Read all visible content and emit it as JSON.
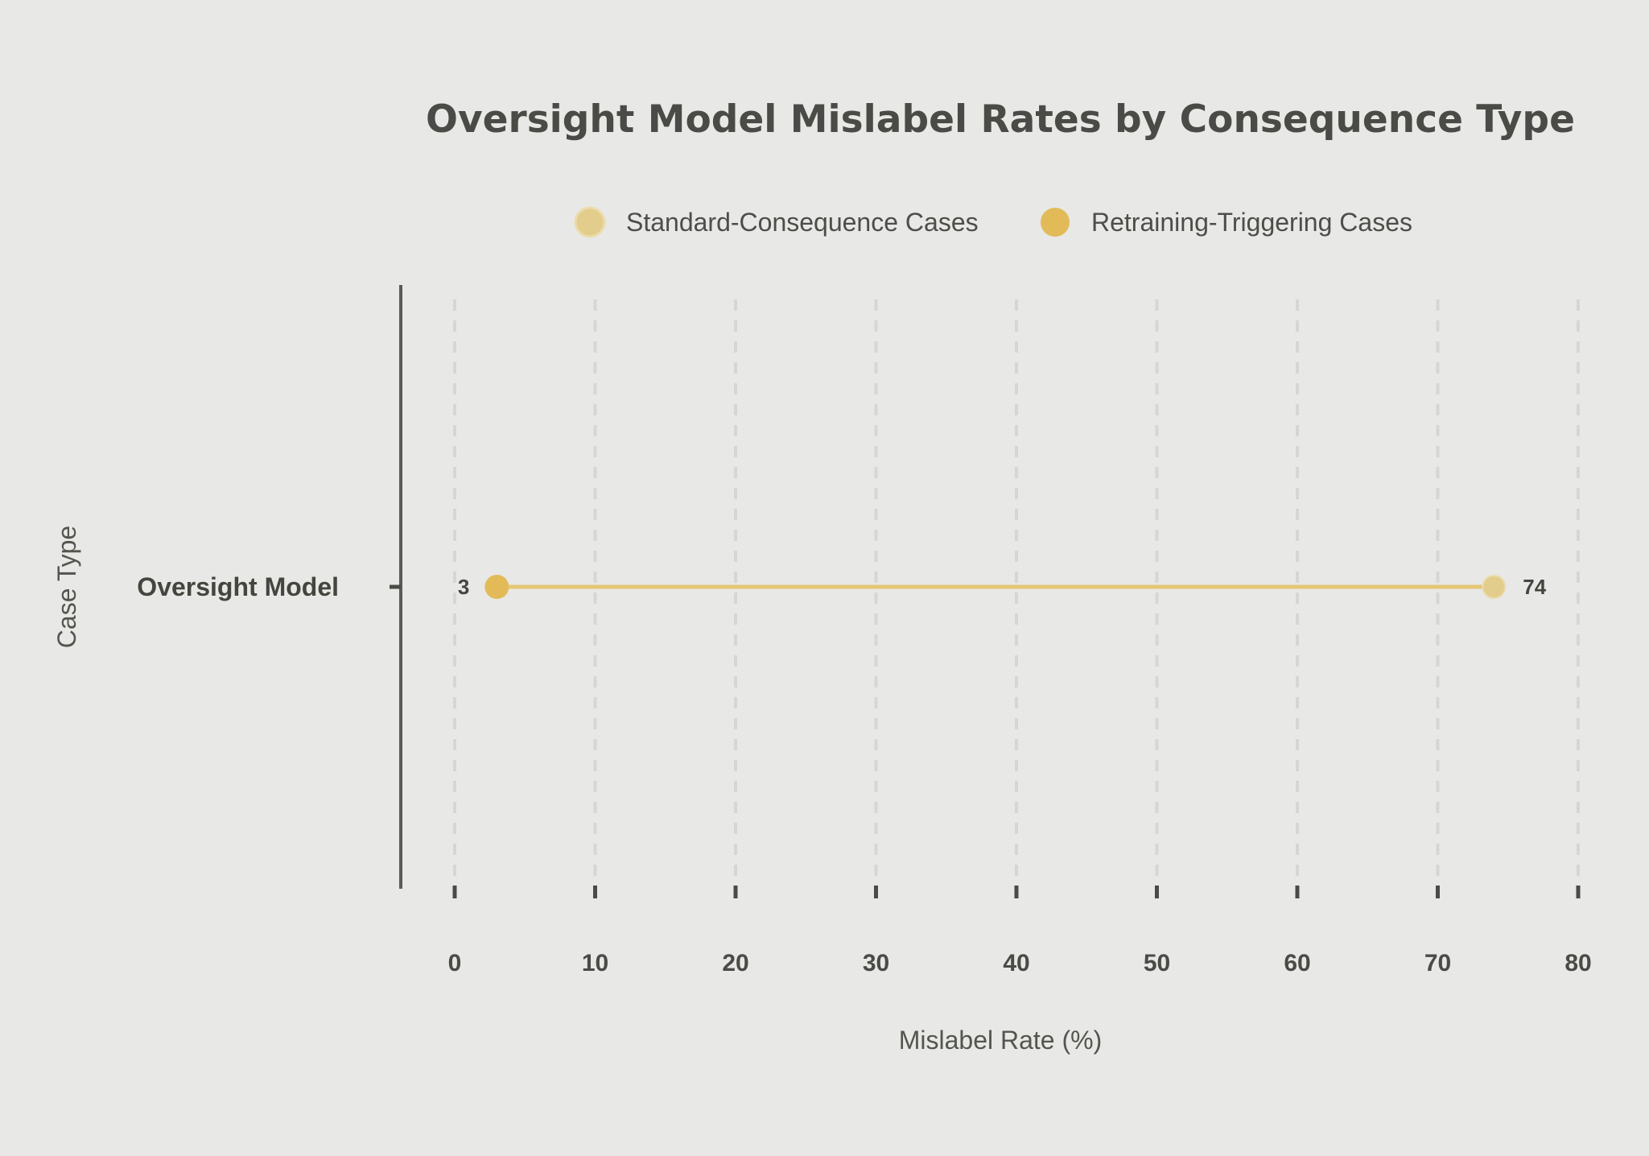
{
  "chart_data": {
    "type": "dumbbell",
    "title": "Oversight Model Mislabel Rates by Consequence Type",
    "xlabel": "Mislabel Rate (%)",
    "ylabel": "Case Type",
    "xlim": [
      0,
      80
    ],
    "xticks": [
      "0",
      "10",
      "20",
      "30",
      "40",
      "50",
      "60",
      "70",
      "80"
    ],
    "grid": true,
    "legend_position": "top-center",
    "categories": [
      "Oversight Model"
    ],
    "series": [
      {
        "name": "Standard-Consequence Cases",
        "values": [
          74
        ],
        "labels": [
          "74"
        ],
        "color": "#e3cd8c"
      },
      {
        "name": "Retraining-Triggering Cases",
        "values": [
          3
        ],
        "labels": [
          "3"
        ],
        "color": "#e2bb58"
      }
    ],
    "connector_color": "#e4c776"
  }
}
